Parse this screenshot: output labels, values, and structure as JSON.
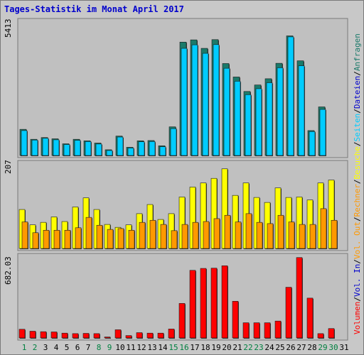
{
  "chart_data": {
    "type": "bar",
    "title": "Tages-Statistik im Monat April 2017",
    "title_color": "#0000cc",
    "days": [
      "1",
      "2",
      "3",
      "4",
      "5",
      "6",
      "7",
      "8",
      "9",
      "10",
      "11",
      "12",
      "13",
      "14",
      "15",
      "16",
      "17",
      "18",
      "19",
      "20",
      "21",
      "22",
      "23",
      "24",
      "25",
      "26",
      "27",
      "28",
      "29",
      "30",
      "31"
    ],
    "weekend_days": [
      "1",
      "2",
      "8",
      "9",
      "15",
      "16",
      "22",
      "23",
      "29",
      "30"
    ],
    "weekend_color": "#008040",
    "weekday_color": "#000000",
    "panels": [
      {
        "name": "requests",
        "max_label": "5413",
        "max": 5413,
        "series": [
          {
            "name": "Anfragen",
            "color": "#1b7a6a",
            "values": [
              1050,
              650,
              720,
              670,
              470,
              650,
              590,
              500,
              230,
              780,
              330,
              590,
              600,
              390,
              1150,
              4550,
              4640,
              4300,
              4650,
              3690,
              3150,
              2570,
              2830,
              3080,
              3700,
              4800,
              3800,
              1000,
              1950
            ]
          },
          {
            "name": "Dateien",
            "color": "#0000cc",
            "values": [
              null,
              null,
              null,
              null,
              null,
              null,
              null,
              null,
              null,
              null,
              null,
              null,
              null,
              null,
              null,
              null,
              null,
              null,
              null,
              null,
              null,
              null,
              null,
              null,
              null,
              null,
              null,
              null,
              null
            ]
          },
          {
            "name": "Seiten",
            "color": "#00ccff",
            "values": [
              1000,
              620,
              690,
              630,
              440,
              610,
              560,
              460,
              200,
              740,
              300,
              550,
              560,
              350,
              1080,
              4300,
              4440,
              4100,
              4450,
              3500,
              2980,
              2440,
              2680,
              2920,
              3520,
              4760,
              3600,
              960,
              1850
            ]
          }
        ]
      },
      {
        "name": "visits",
        "max_label": "207",
        "max": 207,
        "series": [
          {
            "name": "Besuche",
            "color": "#ffff00",
            "values": [
              94,
              57,
              63,
              76,
              65,
              100,
              122,
              94,
              58,
              51,
              57,
              84,
              106,
              70,
              84,
              124,
              148,
              158,
              169,
              192,
              128,
              158,
              123,
              111,
              146,
              123,
              124,
              117,
              158,
              165
            ]
          },
          {
            "name": "Rechner",
            "color": "#ff9900",
            "values": [
              64,
              38,
              44,
              44,
              44,
              50,
              75,
              56,
              46,
              48,
              44,
              63,
              68,
              58,
              43,
              58,
              63,
              65,
              72,
              80,
              64,
              84,
              63,
              60,
              80,
              64,
              58,
              58,
              96,
              68
            ]
          }
        ]
      },
      {
        "name": "volume",
        "max_label": "682.03",
        "max": 682.03,
        "series": [
          {
            "name": "Vol. Out",
            "color": "#ff9900",
            "values": []
          },
          {
            "name": "Vol. In",
            "color": "#0000cc",
            "values": []
          },
          {
            "name": "Volumen",
            "color": "#ff0000",
            "values": [
              72,
              56,
              52,
              50,
              40,
              36,
              38,
              36,
              8,
              68,
              20,
              44,
              40,
              40,
              74,
              286,
              560,
              576,
              578,
              598,
              304,
              126,
              126,
              126,
              140,
              420,
              666,
              330,
              36,
              78
            ]
          }
        ]
      }
    ],
    "legend": {
      "text_order": [
        "Volumen",
        "/",
        "Vol. In",
        "/",
        "Vol. Out",
        "/",
        "Rechner",
        "/",
        "Besuche",
        "/",
        "Seiten",
        "/",
        "Dateien",
        "/",
        "Anfragen"
      ],
      "separator_color": "#000000",
      "placement": "right-vertical"
    }
  }
}
